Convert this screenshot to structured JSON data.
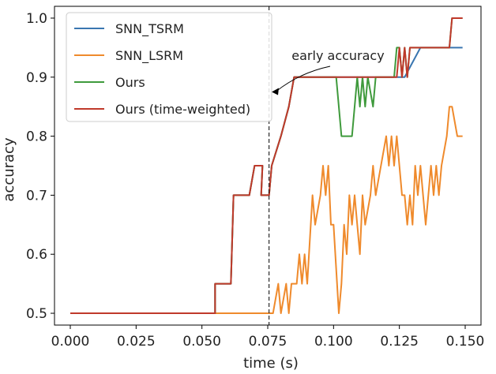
{
  "chart_data": {
    "type": "line",
    "xlabel": "time (s)",
    "ylabel": "accuracy",
    "xlim": [
      -0.006,
      0.156
    ],
    "ylim": [
      0.48,
      1.02
    ],
    "xticks": [
      0.0,
      0.025,
      0.05,
      0.075,
      0.1,
      0.125,
      0.15
    ],
    "xtick_labels": [
      "0.000",
      "0.025",
      "0.050",
      "0.075",
      "0.100",
      "0.125",
      "0.150"
    ],
    "yticks": [
      0.5,
      0.6,
      0.7,
      0.8,
      0.9,
      1.0
    ],
    "ytick_labels": [
      "0.5",
      "0.6",
      "0.7",
      "0.8",
      "0.9",
      "1.0"
    ],
    "grid": false,
    "legend_position": "top-left",
    "vline": {
      "x": 0.0755,
      "style": "dashed"
    },
    "annotation": {
      "text": "early accuracy",
      "arrow_to": [
        0.0765,
        0.875
      ]
    },
    "series": [
      {
        "name": "SNN_TSRM",
        "color": "#3a76b0",
        "points": [
          [
            0,
            0.5
          ],
          [
            0.055,
            0.5
          ],
          [
            0.055,
            0.55
          ],
          [
            0.061,
            0.55
          ],
          [
            0.062,
            0.7
          ],
          [
            0.068,
            0.7
          ],
          [
            0.07,
            0.75
          ],
          [
            0.073,
            0.75
          ],
          [
            0.0725,
            0.7
          ],
          [
            0.0755,
            0.7
          ],
          [
            0.0765,
            0.75
          ],
          [
            0.08,
            0.8
          ],
          [
            0.083,
            0.85
          ],
          [
            0.085,
            0.9
          ],
          [
            0.127,
            0.9
          ],
          [
            0.133,
            0.95
          ],
          [
            0.149,
            0.95
          ]
        ]
      },
      {
        "name": "SNN_LSRM",
        "color": "#ef8a2c",
        "points": [
          [
            0,
            0.5
          ],
          [
            0.077,
            0.5
          ],
          [
            0.079,
            0.55
          ],
          [
            0.08,
            0.5
          ],
          [
            0.082,
            0.55
          ],
          [
            0.083,
            0.5
          ],
          [
            0.084,
            0.55
          ],
          [
            0.086,
            0.55
          ],
          [
            0.087,
            0.6
          ],
          [
            0.088,
            0.55
          ],
          [
            0.089,
            0.6
          ],
          [
            0.09,
            0.55
          ],
          [
            0.092,
            0.7
          ],
          [
            0.093,
            0.65
          ],
          [
            0.095,
            0.7
          ],
          [
            0.096,
            0.75
          ],
          [
            0.097,
            0.7
          ],
          [
            0.098,
            0.75
          ],
          [
            0.099,
            0.65
          ],
          [
            0.1,
            0.65
          ],
          [
            0.102,
            0.5
          ],
          [
            0.103,
            0.55
          ],
          [
            0.104,
            0.65
          ],
          [
            0.105,
            0.6
          ],
          [
            0.106,
            0.7
          ],
          [
            0.107,
            0.65
          ],
          [
            0.108,
            0.7
          ],
          [
            0.109,
            0.65
          ],
          [
            0.11,
            0.6
          ],
          [
            0.111,
            0.7
          ],
          [
            0.112,
            0.65
          ],
          [
            0.114,
            0.7
          ],
          [
            0.115,
            0.75
          ],
          [
            0.116,
            0.7
          ],
          [
            0.118,
            0.75
          ],
          [
            0.12,
            0.8
          ],
          [
            0.121,
            0.75
          ],
          [
            0.122,
            0.8
          ],
          [
            0.123,
            0.75
          ],
          [
            0.124,
            0.8
          ],
          [
            0.125,
            0.75
          ],
          [
            0.126,
            0.7
          ],
          [
            0.127,
            0.7
          ],
          [
            0.128,
            0.65
          ],
          [
            0.129,
            0.7
          ],
          [
            0.13,
            0.65
          ],
          [
            0.131,
            0.75
          ],
          [
            0.132,
            0.7
          ],
          [
            0.133,
            0.75
          ],
          [
            0.135,
            0.65
          ],
          [
            0.136,
            0.7
          ],
          [
            0.137,
            0.75
          ],
          [
            0.138,
            0.7
          ],
          [
            0.139,
            0.75
          ],
          [
            0.14,
            0.7
          ],
          [
            0.141,
            0.75
          ],
          [
            0.143,
            0.8
          ],
          [
            0.144,
            0.85
          ],
          [
            0.145,
            0.85
          ],
          [
            0.147,
            0.8
          ],
          [
            0.149,
            0.8
          ]
        ]
      },
      {
        "name": "Ours",
        "color": "#3f9a3c",
        "points": [
          [
            0,
            0.5
          ],
          [
            0.055,
            0.5
          ],
          [
            0.055,
            0.55
          ],
          [
            0.061,
            0.55
          ],
          [
            0.062,
            0.7
          ],
          [
            0.068,
            0.7
          ],
          [
            0.07,
            0.75
          ],
          [
            0.073,
            0.75
          ],
          [
            0.0725,
            0.7
          ],
          [
            0.0755,
            0.7
          ],
          [
            0.0765,
            0.75
          ],
          [
            0.08,
            0.8
          ],
          [
            0.083,
            0.85
          ],
          [
            0.085,
            0.9
          ],
          [
            0.101,
            0.9
          ],
          [
            0.103,
            0.8
          ],
          [
            0.107,
            0.8
          ],
          [
            0.109,
            0.9
          ],
          [
            0.11,
            0.85
          ],
          [
            0.111,
            0.9
          ],
          [
            0.112,
            0.85
          ],
          [
            0.113,
            0.9
          ],
          [
            0.115,
            0.85
          ],
          [
            0.116,
            0.9
          ],
          [
            0.123,
            0.9
          ],
          [
            0.124,
            0.95
          ],
          [
            0.125,
            0.95
          ],
          [
            0.126,
            0.9
          ],
          [
            0.127,
            0.95
          ],
          [
            0.128,
            0.9
          ],
          [
            0.129,
            0.95
          ],
          [
            0.144,
            0.95
          ],
          [
            0.145,
            1.0
          ],
          [
            0.149,
            1.0
          ]
        ]
      },
      {
        "name": "Ours (time-weighted)",
        "color": "#c0392b",
        "points": [
          [
            0,
            0.5
          ],
          [
            0.055,
            0.5
          ],
          [
            0.055,
            0.55
          ],
          [
            0.061,
            0.55
          ],
          [
            0.062,
            0.7
          ],
          [
            0.068,
            0.7
          ],
          [
            0.07,
            0.75
          ],
          [
            0.073,
            0.75
          ],
          [
            0.0725,
            0.7
          ],
          [
            0.0755,
            0.7
          ],
          [
            0.0765,
            0.75
          ],
          [
            0.08,
            0.8
          ],
          [
            0.083,
            0.85
          ],
          [
            0.085,
            0.9
          ],
          [
            0.122,
            0.9
          ],
          [
            0.124,
            0.9
          ],
          [
            0.125,
            0.95
          ],
          [
            0.126,
            0.9
          ],
          [
            0.127,
            0.95
          ],
          [
            0.128,
            0.9
          ],
          [
            0.129,
            0.95
          ],
          [
            0.144,
            0.95
          ],
          [
            0.145,
            1.0
          ],
          [
            0.149,
            1.0
          ]
        ]
      }
    ]
  }
}
